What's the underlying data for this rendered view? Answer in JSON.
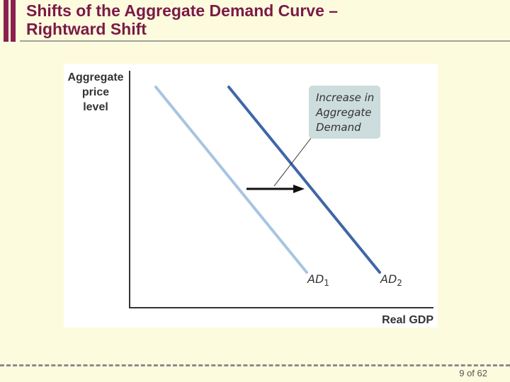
{
  "slide": {
    "title_line1": "Shifts of the Aggregate Demand Curve –",
    "title_line2": "Rightward Shift",
    "page_number": "9 of 62"
  },
  "diagram": {
    "ylabel_lines": [
      "Aggregate",
      "price",
      "level"
    ],
    "xlabel": "Real GDP",
    "callout_lines": [
      "Increase in",
      "Aggregate",
      "Demand"
    ],
    "curve1": {
      "label": "AD",
      "sub": "1",
      "color": "#a8c4e2"
    },
    "curve2": {
      "label": "AD",
      "sub": "2",
      "color": "#3f66a8"
    },
    "arrow_color": "#111111",
    "axis_color": "#333333",
    "callout_fill": "#cddcdd"
  }
}
